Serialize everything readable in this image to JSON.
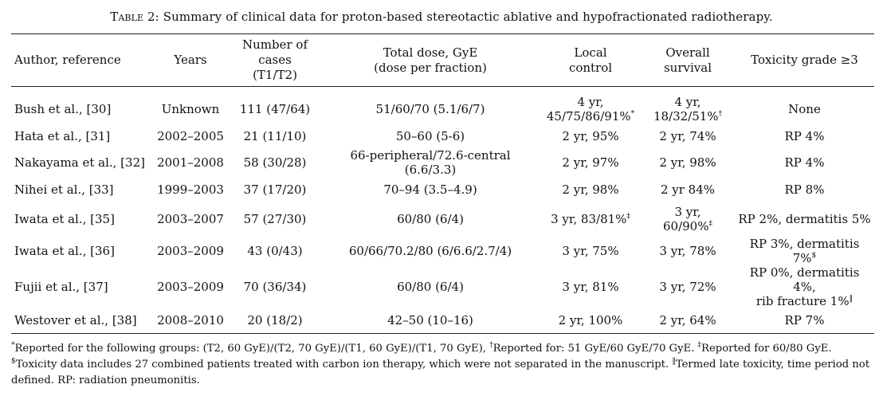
{
  "caption": {
    "label": "Table 2:",
    "text": "Summary of clinical data for proton-based stereotactic ablative and hypofractionated radiotherapy."
  },
  "headers": {
    "author": "Author, reference",
    "years": "Years",
    "cases_1": "Number of",
    "cases_2": "cases",
    "cases_3": "(T1/T2)",
    "dose_1": "Total dose, GyE",
    "dose_2": "(dose per fraction)",
    "local_1": "Local",
    "local_2": "control",
    "overall_1": "Overall",
    "overall_2": "survival",
    "toxicity": "Toxicity grade ≥3"
  },
  "rows": [
    {
      "author": "Bush et al., [30]",
      "years": "Unknown",
      "cases": "111 (47/64)",
      "dose": "51/60/70 (5.1/6/7)",
      "local_1": "4 yr,",
      "local_2": "45/75/86/91%",
      "local_mark": "*",
      "overall_1": "4 yr,",
      "overall_2": "18/32/51%",
      "overall_mark": "†",
      "toxicity": "None"
    },
    {
      "author": "Hata et al., [31]",
      "years": "2002–2005",
      "cases": "21 (11/10)",
      "dose": "50–60 (5-6)",
      "local": "2 yr, 95%",
      "overall": "2 yr, 74%",
      "toxicity": "RP 4%"
    },
    {
      "author": "Nakayama et al., [32]",
      "years": "2001–2008",
      "cases": "58 (30/28)",
      "dose": "66-peripheral/72.6-central (6.6/3.3)",
      "local": "2 yr, 97%",
      "overall": "2 yr, 98%",
      "toxicity": "RP 4%"
    },
    {
      "author": "Nihei et al., [33]",
      "years": "1999–2003",
      "cases": "37 (17/20)",
      "dose": "70–94 (3.5–4.9)",
      "local": "2 yr, 98%",
      "overall": "2 yr 84%",
      "toxicity": "RP 8%"
    },
    {
      "author": "Iwata et al., [35]",
      "years": "2003–2007",
      "cases": "57 (27/30)",
      "dose": "60/80 (6/4)",
      "local": "3 yr, 83/81%",
      "local_mark": "‡",
      "overall_1": "3 yr,",
      "overall_2": "60/90%",
      "overall_mark": "‡",
      "toxicity": "RP 2%, dermatitis 5%"
    },
    {
      "author": "Iwata et al., [36]",
      "years": "2003–2009",
      "cases": "43 (0/43)",
      "dose": "60/66/70.2/80 (6/6.6/2.7/4)",
      "local": "3 yr, 75%",
      "overall": "3 yr, 78%",
      "toxicity": "RP 3%, dermatitis 7%",
      "toxicity_mark": "$"
    },
    {
      "author": "Fujii et al., [37]",
      "years": "2003–2009",
      "cases": "70 (36/34)",
      "dose": "60/80 (6/4)",
      "local": "3 yr, 81%",
      "overall": "3 yr, 72%",
      "toxicity_1": "RP 0%, dermatitis 4%,",
      "toxicity_2": "rib fracture 1%",
      "toxicity_mark": "‖"
    },
    {
      "author": "Westover et al., [38]",
      "years": "2008–2010",
      "cases": "20 (18/2)",
      "dose": "42–50 (10–16)",
      "local": "2 yr, 100%",
      "overall": "2 yr, 64%",
      "toxicity": "RP 7%"
    }
  ],
  "footnotes": {
    "mark_1": "*",
    "text_1": "Reported for the following groups: (T2, 60 GyE)/(T2, 70 GyE)/(T1, 60 GyE)/(T1, 70 GyE), ",
    "mark_2": "†",
    "text_2": "Reported for: 51 GyE/60 GyE/70 GyE. ",
    "mark_3": "‡",
    "text_3": "Reported for 60/80 GyE.",
    "mark_4": "$",
    "text_4": "Toxicity data includes 27 combined patients treated with carbon ion therapy, which were not separated in the manuscript. ",
    "mark_5": "‖",
    "text_5": "Termed late toxicity, time period not defined. RP: radiation pneumonitis."
  }
}
